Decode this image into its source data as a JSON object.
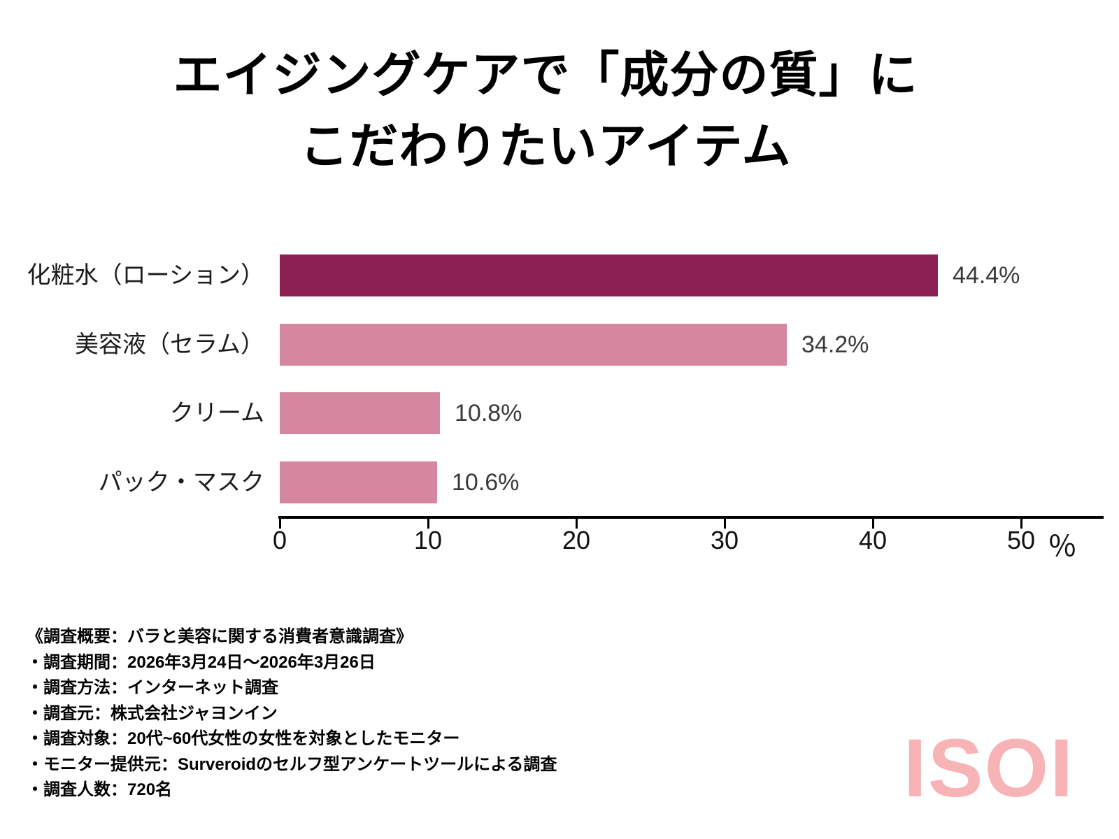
{
  "title": {
    "line1": "エイジングケアで「成分の質」に",
    "line2": "こだわりたいアイテム"
  },
  "chart_data": {
    "type": "bar",
    "orientation": "horizontal",
    "title": "エイジングケアで「成分の質」にこだわりたいアイテム",
    "categories": [
      "化粧水（ローション）",
      "美容液（セラム）",
      "クリーム",
      "パック・マスク"
    ],
    "values": [
      44.4,
      34.2,
      10.8,
      10.6
    ],
    "value_labels": [
      "44.4%",
      "34.2%",
      "10.8%",
      "10.6%"
    ],
    "bar_colors": [
      "#8C2052",
      "#D4879E",
      "#D4879E",
      "#D4879E"
    ],
    "xlim": [
      0,
      55.7
    ],
    "x_ticks": [
      0,
      10,
      20,
      30,
      40,
      50
    ],
    "x_unit_label": "％",
    "xlabel": "",
    "ylabel": "",
    "grid": false,
    "legend": "none"
  },
  "footer": {
    "lines": [
      "《調査概要：バラと美容に関する消費者意識調査》",
      "・調査期間：2026年3月24日〜2026年3月26日",
      "・調査方法：インターネット調査",
      "・調査元：株式会社ジャヨンイン",
      "・調査対象：20代~60代女性の女性を対象としたモニター",
      "・モニター提供元：Surveroidのセルフ型アンケートツールによる調査",
      "・調査人数：720名"
    ]
  },
  "logo": {
    "text": "ISOI",
    "color": "#F8B3B6"
  },
  "colors": {
    "background": "#FFFFFF",
    "bar_primary": "#8C2052",
    "bar_secondary": "#D4879E",
    "axis": "#000000",
    "title_text": "#000000",
    "value_text": "#3A3A3A"
  }
}
